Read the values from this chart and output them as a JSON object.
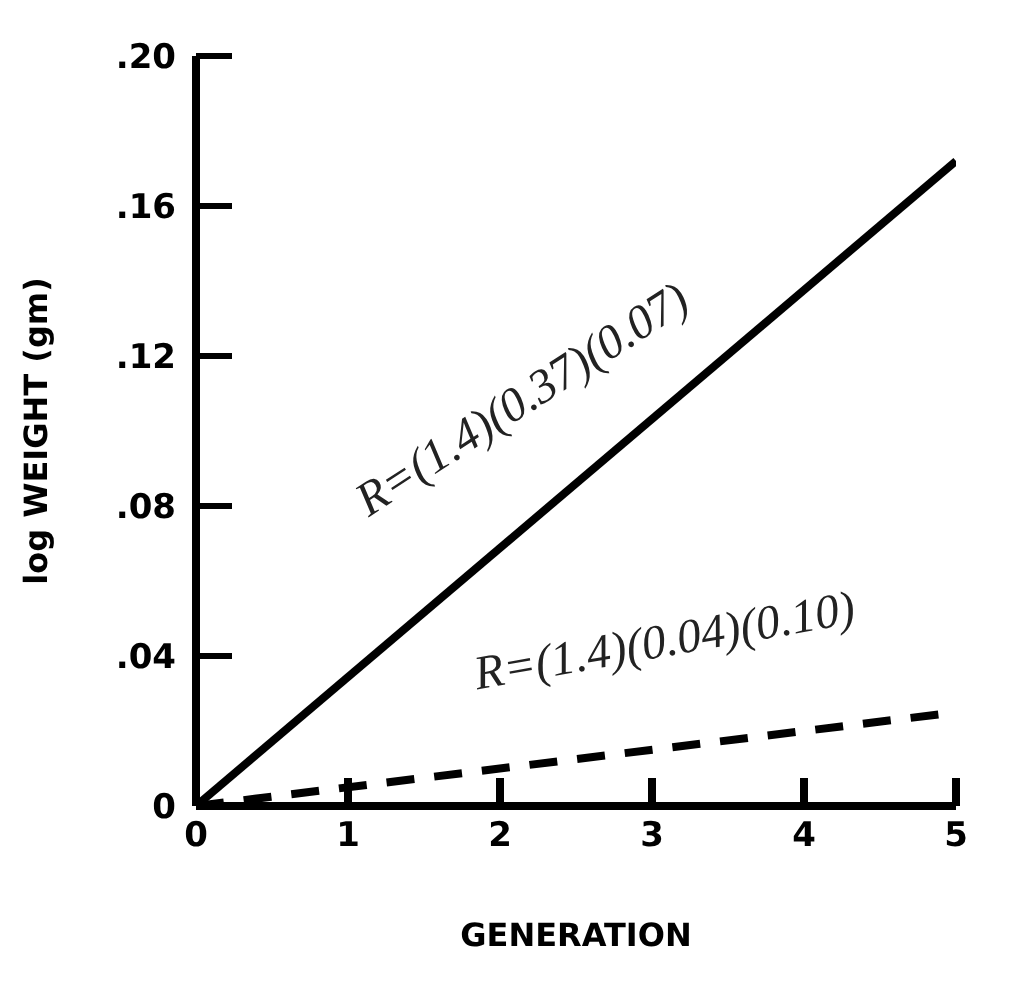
{
  "chart_data": {
    "type": "line",
    "xlabel": "GENERATION",
    "ylabel": "log WEIGHT (gm)",
    "x": [
      0,
      5
    ],
    "series": [
      {
        "color": "#000000",
        "values": [
          0,
          0.172
        ],
        "line_style": "solid"
      },
      {
        "color": "#000000",
        "values": [
          0,
          0.025
        ],
        "line_style": "dashed"
      }
    ],
    "xlim": [
      0,
      5
    ],
    "xticks": [
      0,
      1,
      2,
      3,
      4,
      5
    ],
    "ylim": [
      0,
      0.2
    ],
    "yticks": [
      {
        "value": 0,
        "label": "0"
      },
      {
        "value": 0.04,
        "label": ".04"
      },
      {
        "value": 0.08,
        "label": ".08"
      },
      {
        "value": 0.12,
        "label": ".12"
      },
      {
        "value": 0.16,
        "label": ".16"
      },
      {
        "value": 0.2,
        "label": ".20"
      }
    ],
    "annotations": [
      "R=(1.4)(0.37)(0.07)",
      "R=(1.4)(0.04)(0.10)"
    ],
    "grid": false,
    "marker": "none"
  }
}
